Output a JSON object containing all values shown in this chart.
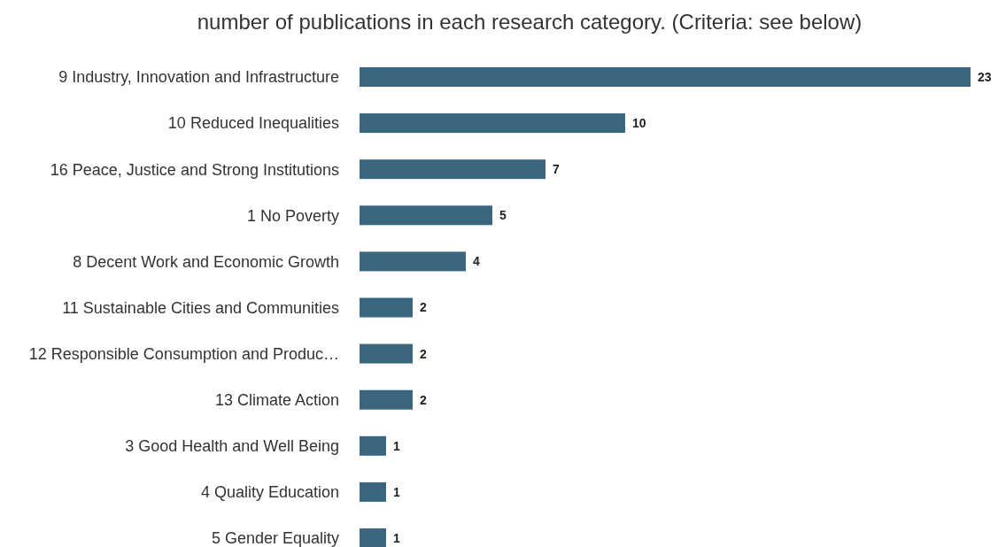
{
  "chart_data": {
    "type": "bar",
    "orientation": "horizontal",
    "title": "number of publications in each research category. (Criteria: see below)",
    "categories": [
      "9 Industry, Innovation and Infrastructure",
      "10 Reduced Inequalities",
      "16 Peace, Justice and Strong Institutions",
      "1 No Poverty",
      "8 Decent Work and Economic Growth",
      "11 Sustainable Cities and Communities",
      "12 Responsible Consumption and Produc…",
      "13 Climate Action",
      "3 Good Health and Well Being",
      "4 Quality Education",
      "5 Gender Equality"
    ],
    "values": [
      23,
      10,
      7,
      5,
      4,
      2,
      2,
      2,
      1,
      1,
      1
    ],
    "color": "#3b6680",
    "data_labels": true
  }
}
